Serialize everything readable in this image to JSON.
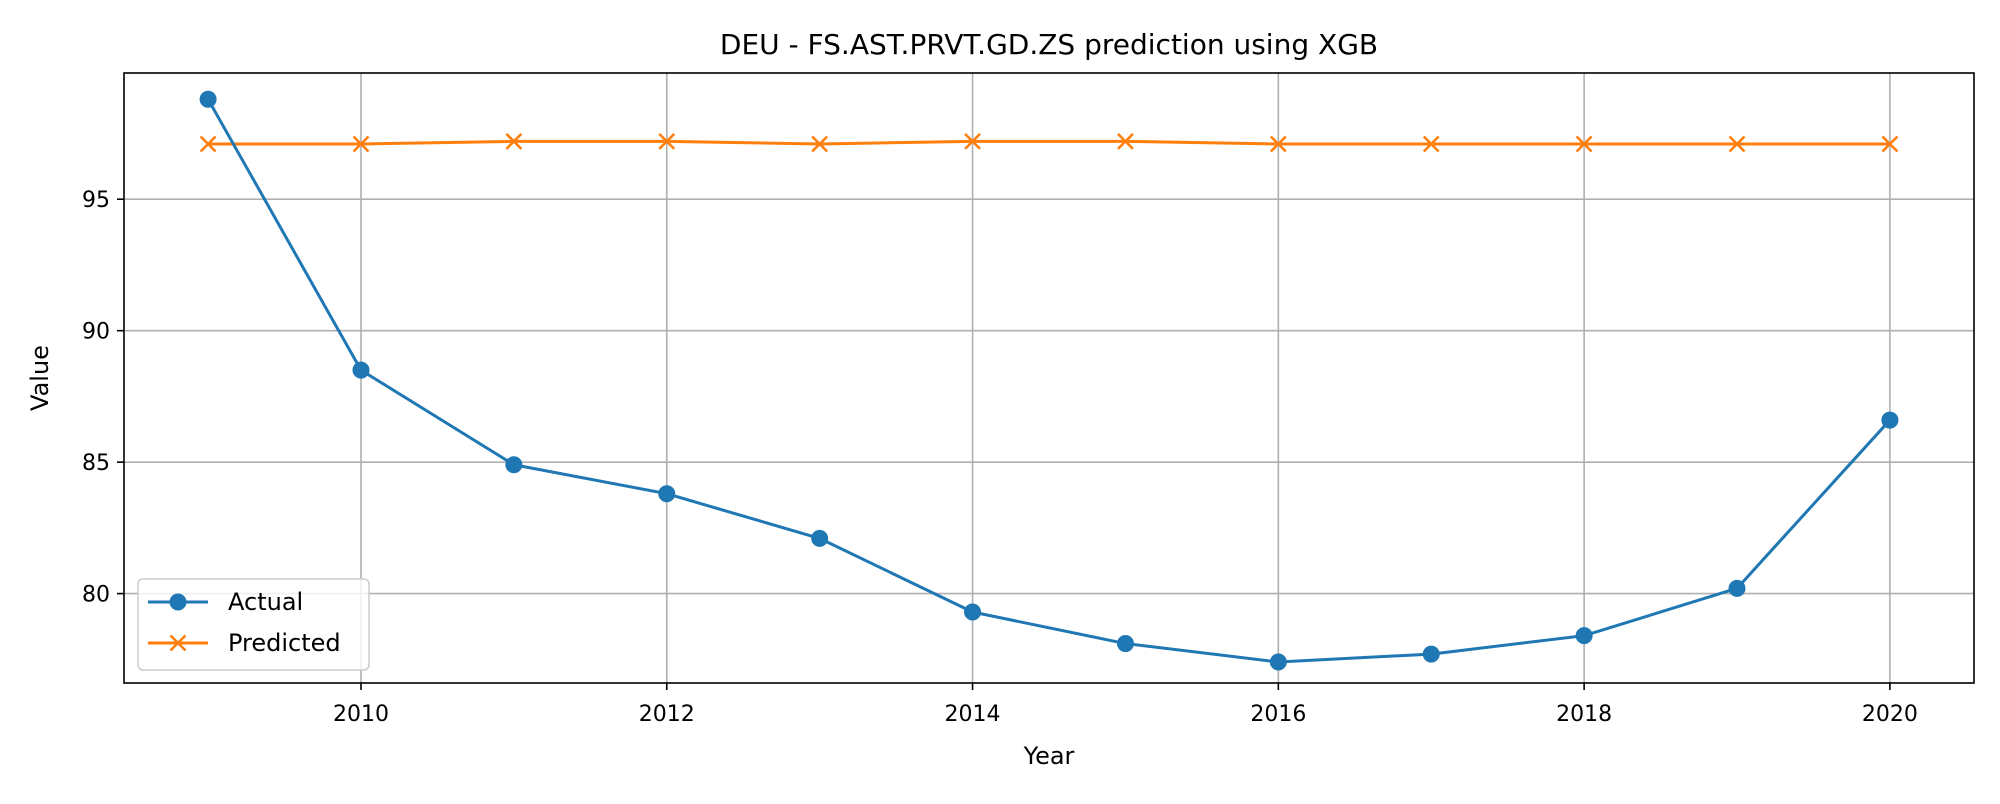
{
  "chart_data": {
    "type": "line",
    "title": "DEU - FS.AST.PRVT.GD.ZS prediction using XGB",
    "xlabel": "Year",
    "ylabel": "Value",
    "x": [
      2009,
      2010,
      2011,
      2012,
      2013,
      2014,
      2015,
      2016,
      2017,
      2018,
      2019,
      2020
    ],
    "xlim": [
      2008.45,
      2020.55
    ],
    "ylim": [
      76.6,
      99.8
    ],
    "xticks": [
      2010,
      2012,
      2014,
      2016,
      2018,
      2020
    ],
    "yticks": [
      80,
      85,
      90,
      95
    ],
    "grid": true,
    "legend_position": "lower-left",
    "series": [
      {
        "name": "Actual",
        "color": "#1f77b4",
        "marker": "circle",
        "values": [
          98.8,
          88.5,
          84.9,
          83.8,
          82.1,
          79.3,
          78.1,
          77.4,
          77.7,
          78.4,
          80.2,
          86.6
        ]
      },
      {
        "name": "Predicted",
        "color": "#ff7f0e",
        "marker": "x",
        "values": [
          97.1,
          97.1,
          97.2,
          97.2,
          97.1,
          97.2,
          97.2,
          97.1,
          97.1,
          97.1,
          97.1,
          97.1
        ]
      }
    ]
  }
}
